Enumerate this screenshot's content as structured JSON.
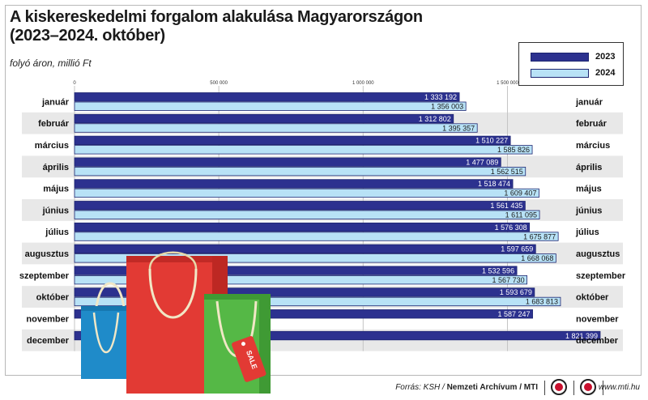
{
  "title_line1": "A kiskereskedelmi forgalom alakulása Magyarországon",
  "title_line2": "(2023–2024. október)",
  "subtitle": "folyó áron, millió Ft",
  "chart_data": {
    "type": "bar",
    "orientation": "horizontal",
    "title": "A kiskereskedelmi forgalom alakulása Magyarországon (2023–2024. október)",
    "subtitle": "folyó áron, millió Ft",
    "categories": [
      "január",
      "február",
      "március",
      "április",
      "május",
      "június",
      "július",
      "augusztus",
      "szeptember",
      "október",
      "november",
      "december"
    ],
    "series": [
      {
        "name": "2023",
        "color": "#2c318f",
        "values": [
          1333192,
          1312802,
          1510227,
          1477089,
          1518474,
          1561435,
          1576308,
          1597659,
          1532596,
          1593679,
          1587247,
          1821399
        ],
        "labels": [
          "1 333 192",
          "1 312 802",
          "1 510 227",
          "1 477 089",
          "1 518 474",
          "1 561 435",
          "1 576 308",
          "1 597 659",
          "1 532 596",
          "1 593 679",
          "1 587 247",
          "1 821 399"
        ]
      },
      {
        "name": "2024",
        "color": "#b8e2f6",
        "values": [
          1356003,
          1395357,
          1585826,
          1562515,
          1609407,
          1611095,
          1675877,
          1668068,
          1567730,
          1683813,
          null,
          null
        ],
        "labels": [
          "1 356 003",
          "1 395 357",
          "1 585 826",
          "1 562 515",
          "1 609 407",
          "1 611 095",
          "1 675 877",
          "1 668 068",
          "1 567 730",
          "1 683 813",
          "",
          ""
        ]
      }
    ],
    "xlim": [
      0,
      1900000
    ],
    "xticks": [
      0,
      500000,
      1000000,
      1500000
    ],
    "xtick_labels": [
      "0",
      "500 000",
      "1 000 000",
      "1 500 000"
    ],
    "grid": true,
    "legend": "top-right"
  },
  "footer": {
    "source_prefix": "Forrás: KSH / ",
    "source_bold": "Nemzeti Archívum / MTI",
    "site": "www.mti.hu"
  }
}
